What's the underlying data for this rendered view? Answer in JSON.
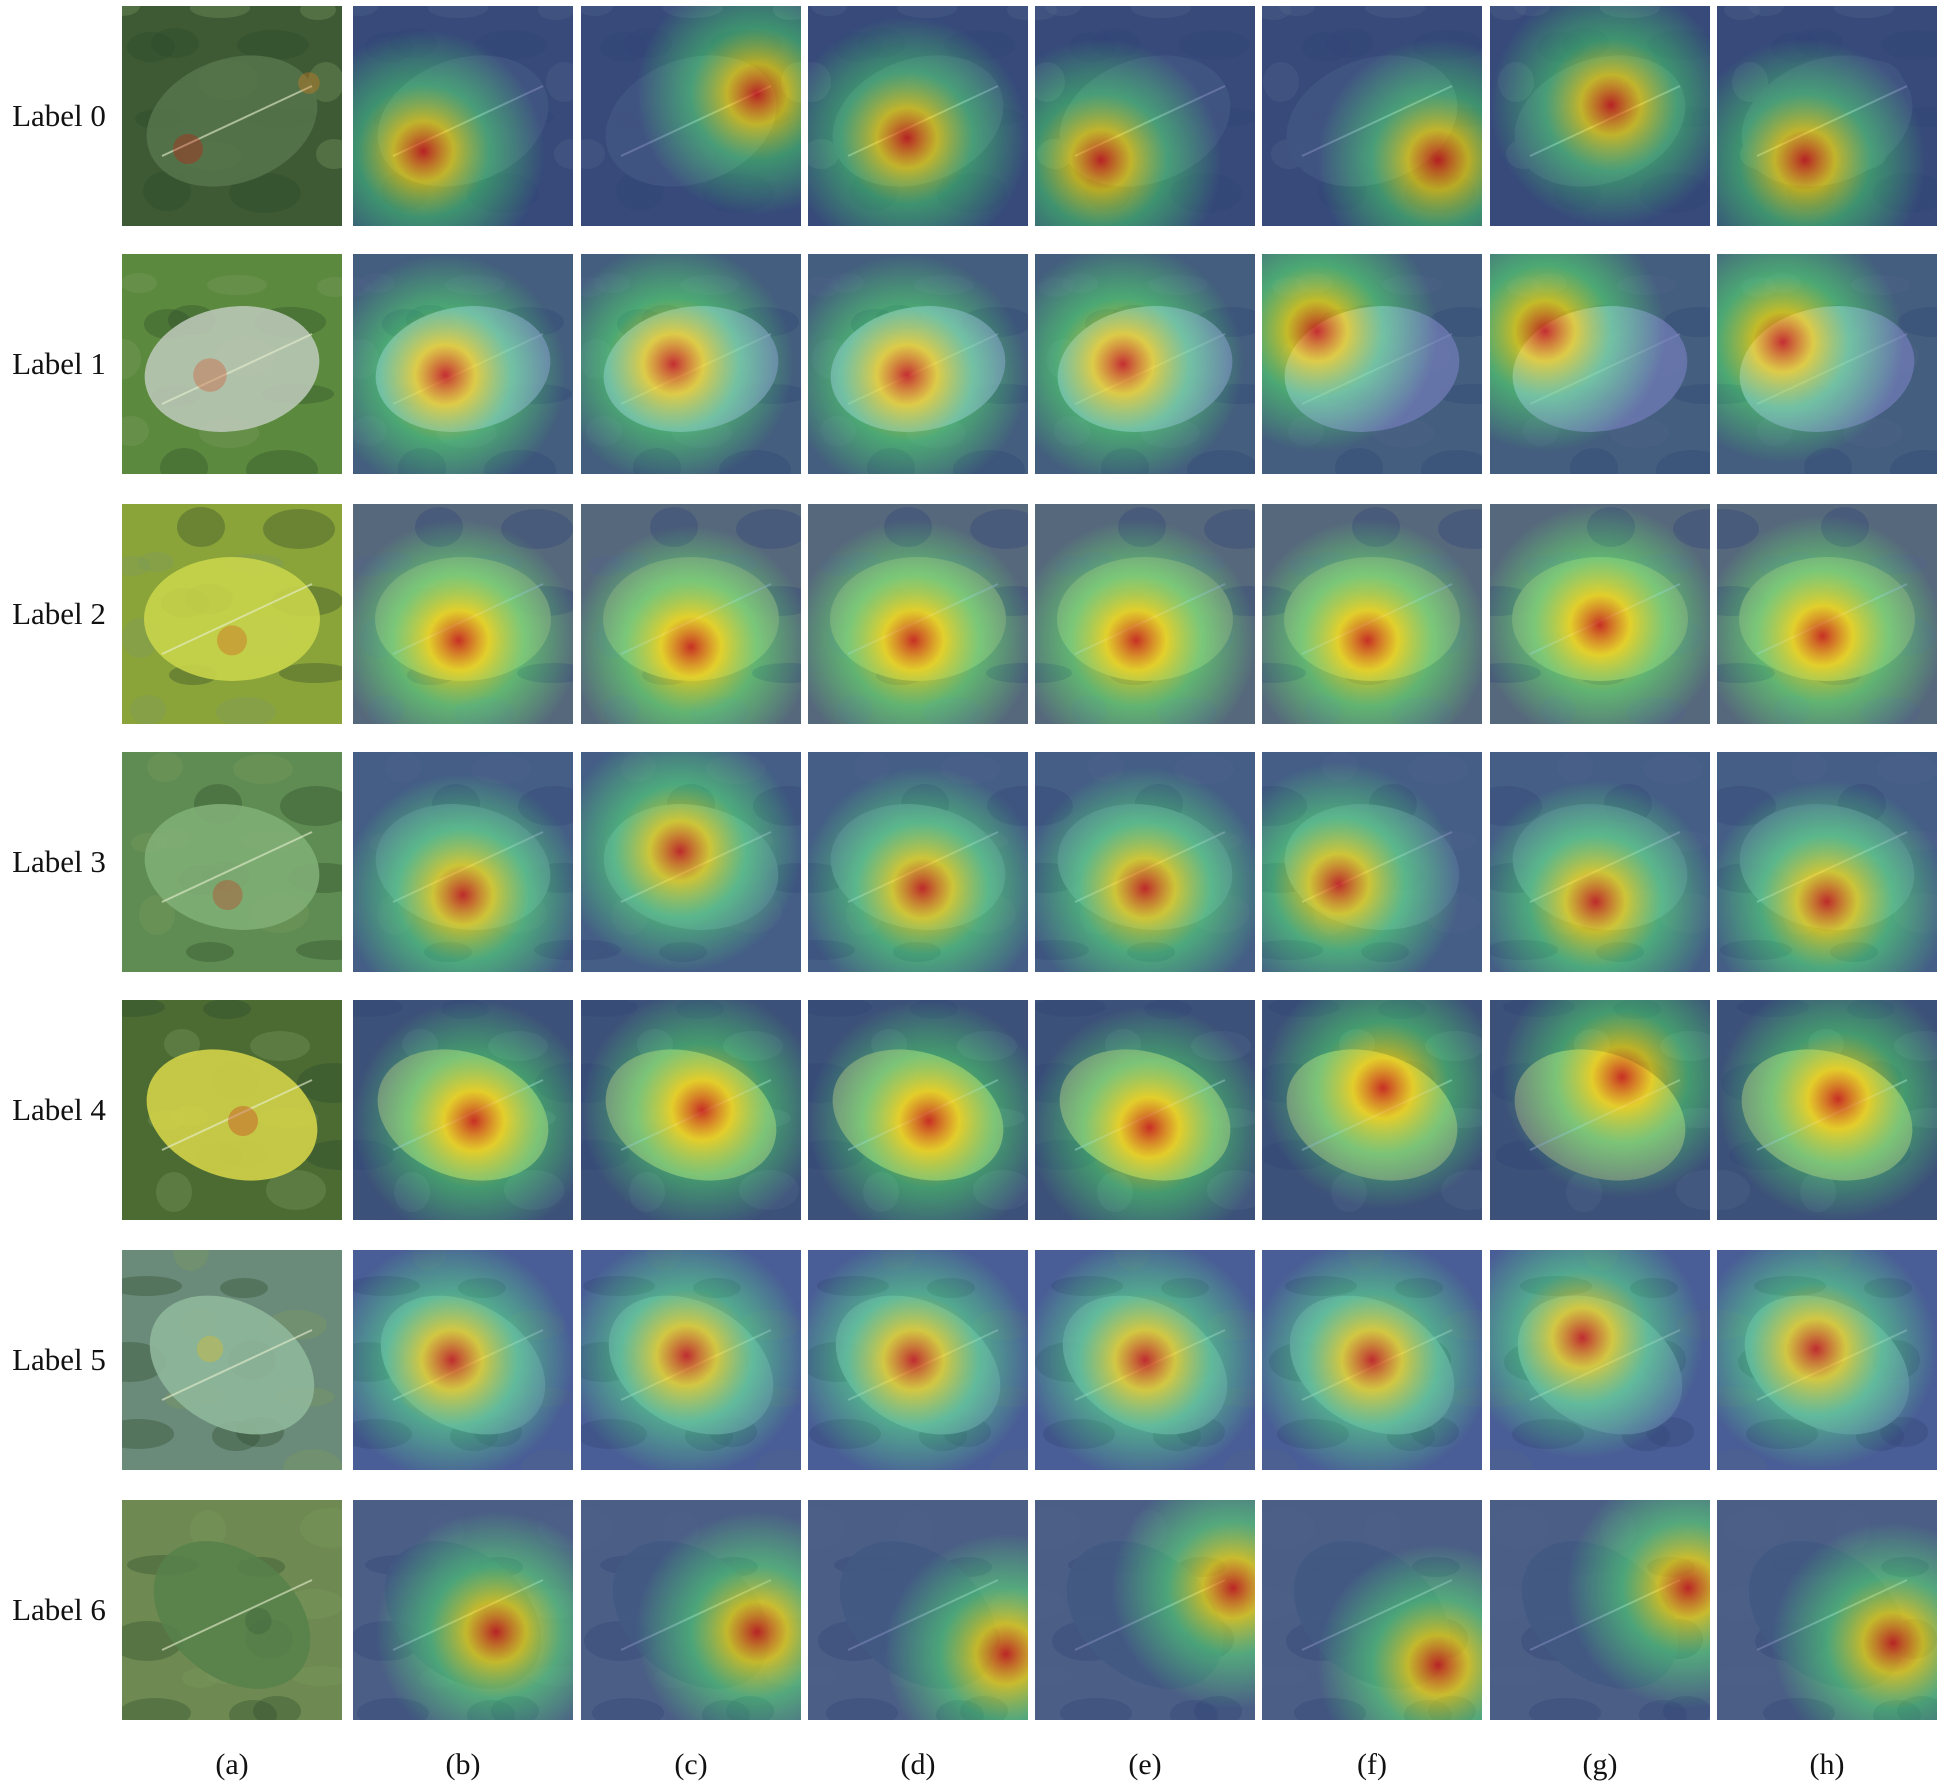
{
  "rows": [
    {
      "label": "Label 0",
      "photo": "#3d5a35",
      "leaf": "#55734a",
      "blobs": [
        [
          0.3,
          0.65,
          0.25,
          "#c71a12"
        ],
        [
          0.85,
          0.35,
          0.18,
          "#e07b1d"
        ]
      ],
      "cols": [
        [
          0.32,
          0.66
        ],
        [
          0.8,
          0.4
        ],
        [
          0.45,
          0.6
        ],
        [
          0.3,
          0.7
        ],
        [
          0.8,
          0.7
        ],
        [
          0.55,
          0.45
        ],
        [
          0.4,
          0.7
        ]
      ]
    },
    {
      "label": "Label 1",
      "photo": "#5b8a3e",
      "leaf": "#b9c7b5",
      "blobs": [
        [
          0.4,
          0.55,
          0.28,
          "#d2542b"
        ]
      ],
      "cols": [
        [
          0.42,
          0.55
        ],
        [
          0.42,
          0.5
        ],
        [
          0.45,
          0.55
        ],
        [
          0.4,
          0.5
        ],
        [
          0.25,
          0.35
        ],
        [
          0.25,
          0.35
        ],
        [
          0.3,
          0.4
        ]
      ]
    },
    {
      "label": "Label 2",
      "photo": "#8aa43a",
      "leaf": "#c8d44a",
      "blobs": [
        [
          0.5,
          0.62,
          0.25,
          "#d2541b"
        ]
      ],
      "cols": [
        [
          0.48,
          0.62
        ],
        [
          0.5,
          0.65
        ],
        [
          0.48,
          0.62
        ],
        [
          0.46,
          0.62
        ],
        [
          0.48,
          0.62
        ],
        [
          0.5,
          0.55
        ],
        [
          0.48,
          0.6
        ]
      ]
    },
    {
      "label": "Label 3",
      "photo": "#5e8c52",
      "leaf": "#7fae76",
      "blobs": [
        [
          0.48,
          0.65,
          0.25,
          "#c83a20"
        ]
      ],
      "cols": [
        [
          0.5,
          0.65
        ],
        [
          0.45,
          0.45
        ],
        [
          0.52,
          0.62
        ],
        [
          0.5,
          0.62
        ],
        [
          0.35,
          0.6
        ],
        [
          0.48,
          0.68
        ],
        [
          0.5,
          0.68
        ]
      ]
    },
    {
      "label": "Label 4",
      "photo": "#4b6b33",
      "leaf": "#d3d348",
      "blobs": [
        [
          0.55,
          0.55,
          0.25,
          "#c8321a"
        ]
      ],
      "cols": [
        [
          0.55,
          0.55
        ],
        [
          0.55,
          0.5
        ],
        [
          0.55,
          0.55
        ],
        [
          0.52,
          0.58
        ],
        [
          0.55,
          0.4
        ],
        [
          0.6,
          0.35
        ],
        [
          0.55,
          0.45
        ]
      ]
    },
    {
      "label": "Label 5",
      "photo": "#6a8a7a",
      "leaf": "#8fb79a",
      "blobs": [
        [
          0.4,
          0.45,
          0.22,
          "#e0c020"
        ]
      ],
      "cols": [
        [
          0.45,
          0.5
        ],
        [
          0.48,
          0.48
        ],
        [
          0.48,
          0.5
        ],
        [
          0.5,
          0.5
        ],
        [
          0.5,
          0.5
        ],
        [
          0.42,
          0.4
        ],
        [
          0.45,
          0.45
        ]
      ]
    },
    {
      "label": "Label 6",
      "photo": "#6e8a52",
      "leaf": "#58814a",
      "blobs": [
        [
          0.62,
          0.55,
          0.22,
          "#3a5f38"
        ]
      ],
      "cols": [
        [
          0.65,
          0.6
        ],
        [
          0.8,
          0.6
        ],
        [
          0.9,
          0.7
        ],
        [
          0.9,
          0.4
        ],
        [
          0.8,
          0.75
        ],
        [
          0.9,
          0.4
        ],
        [
          0.8,
          0.65
        ]
      ]
    }
  ],
  "columns": [
    "(a)",
    "(b)",
    "(c)",
    "(d)",
    "(e)",
    "(f)",
    "(g)",
    "(h)"
  ],
  "colors": {
    "heat_hot": "#c8141e",
    "heat_warm": "#f0d020",
    "heat_mid": "#3fc0a0",
    "heat_cool": "#3340a8"
  }
}
